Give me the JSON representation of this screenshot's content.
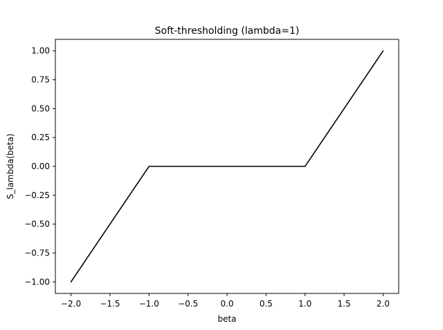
{
  "chart_data": {
    "type": "line",
    "title": "Soft-thresholding (lambda=1)",
    "xlabel": "beta",
    "ylabel": "S_lambda(beta)",
    "xlim": [
      -2.2,
      2.2
    ],
    "ylim": [
      -1.1,
      1.1
    ],
    "x_ticks": [
      -2.0,
      -1.5,
      -1.0,
      -0.5,
      0.0,
      0.5,
      1.0,
      1.5,
      2.0
    ],
    "x_tick_labels": [
      "−2.0",
      "−1.5",
      "−1.0",
      "−0.5",
      "0.0",
      "0.5",
      "1.0",
      "1.5",
      "2.0"
    ],
    "y_ticks": [
      -1.0,
      -0.75,
      -0.5,
      -0.25,
      0.0,
      0.25,
      0.5,
      0.75,
      1.0
    ],
    "y_tick_labels": [
      "−1.00",
      "−0.75",
      "−0.50",
      "−0.25",
      "0.00",
      "0.25",
      "0.50",
      "0.75",
      "1.00"
    ],
    "grid": false,
    "series": [
      {
        "color": "#000000",
        "x": [
          -2.0,
          -1.0,
          1.0,
          2.0
        ],
        "y": [
          -1.0,
          0.0,
          0.0,
          1.0
        ]
      }
    ]
  }
}
